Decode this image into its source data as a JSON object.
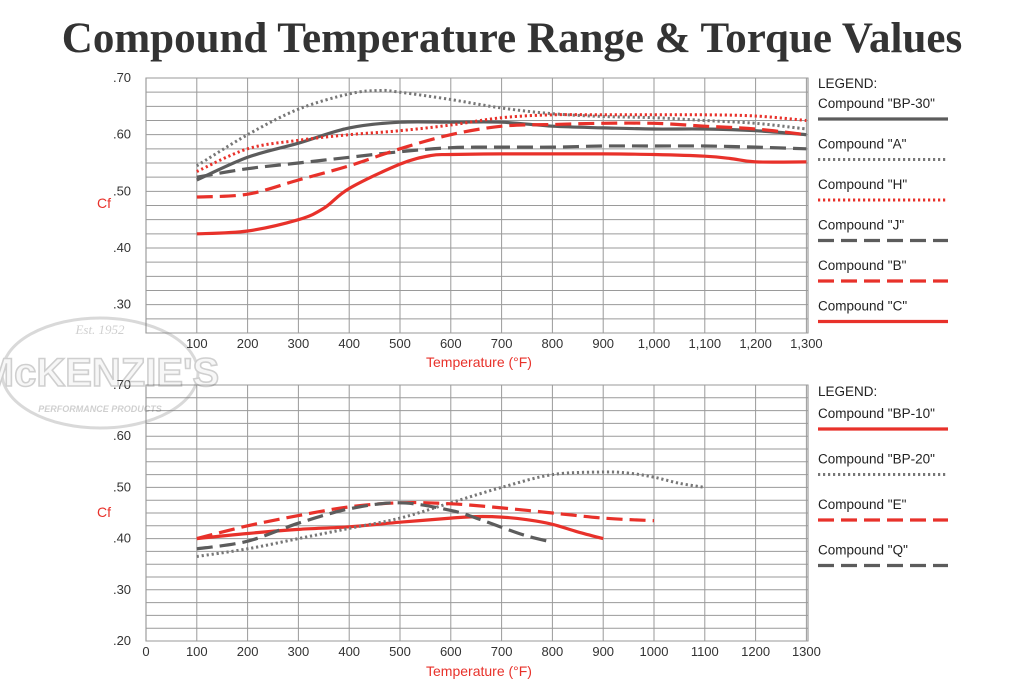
{
  "page": {
    "title": "Compound Temperature Range & Torque Values"
  },
  "watermark": {
    "text": "McKENZIE'S",
    "top_text": "Est. 1952",
    "bottom_text": "PERFORMANCE PRODUCTS"
  },
  "colors": {
    "red": "#e8312a",
    "dark_gray": "#5c5c5c",
    "dotted_gray": "#777777",
    "grid": "#9a9a9a"
  },
  "chart_data": [
    {
      "type": "line",
      "title": "",
      "xlabel": "Temperature (°F)",
      "ylabel": "Cf",
      "xlim": [
        100,
        1300
      ],
      "ylim": [
        0.25,
        0.7
      ],
      "xticks": [
        "100",
        "200",
        "300",
        "400",
        "500",
        "600",
        "700",
        "800",
        "900",
        "1,000",
        "1,100",
        "1,200",
        "1,300"
      ],
      "yticks": [
        ".30",
        ".40",
        ".50",
        ".60",
        ".70"
      ],
      "grid": true,
      "legend_title": "LEGEND:",
      "legend_position": "right",
      "series": [
        {
          "name": "Compound \"BP-30\"",
          "color": "#5c5c5c",
          "style": "solid",
          "x": [
            100,
            200,
            300,
            400,
            500,
            600,
            700,
            800,
            900,
            1000,
            1100,
            1200,
            1300
          ],
          "y": [
            0.52,
            0.56,
            0.585,
            0.612,
            0.622,
            0.622,
            0.622,
            0.615,
            0.612,
            0.61,
            0.61,
            0.607,
            0.6
          ]
        },
        {
          "name": "Compound \"A\"",
          "color": "#777777",
          "style": "dotted",
          "x": [
            100,
            200,
            300,
            400,
            460,
            500,
            600,
            700,
            800,
            900,
            1000,
            1100,
            1200,
            1300
          ],
          "y": [
            0.545,
            0.6,
            0.645,
            0.672,
            0.678,
            0.675,
            0.662,
            0.647,
            0.637,
            0.632,
            0.63,
            0.625,
            0.62,
            0.61
          ]
        },
        {
          "name": "Compound \"H\"",
          "color": "#e8312a",
          "style": "dotted",
          "x": [
            100,
            200,
            300,
            400,
            500,
            600,
            700,
            800,
            900,
            1000,
            1100,
            1200,
            1300
          ],
          "y": [
            0.535,
            0.575,
            0.59,
            0.6,
            0.607,
            0.617,
            0.63,
            0.635,
            0.635,
            0.635,
            0.635,
            0.633,
            0.625
          ]
        },
        {
          "name": "Compound \"J\"",
          "color": "#5c5c5c",
          "style": "dashed",
          "x": [
            100,
            200,
            300,
            400,
            500,
            600,
            700,
            800,
            900,
            1000,
            1100,
            1200,
            1300
          ],
          "y": [
            0.525,
            0.54,
            0.55,
            0.56,
            0.57,
            0.577,
            0.578,
            0.578,
            0.58,
            0.58,
            0.58,
            0.578,
            0.575
          ]
        },
        {
          "name": "Compound \"B\"",
          "color": "#e8312a",
          "style": "dashed",
          "x": [
            100,
            200,
            300,
            400,
            500,
            600,
            700,
            800,
            900,
            1000,
            1100,
            1200,
            1300
          ],
          "y": [
            0.49,
            0.495,
            0.52,
            0.545,
            0.575,
            0.6,
            0.615,
            0.618,
            0.62,
            0.62,
            0.615,
            0.61,
            0.6
          ]
        },
        {
          "name": "Compound \"C\"",
          "color": "#e8312a",
          "style": "solid",
          "x": [
            100,
            200,
            300,
            350,
            400,
            500,
            560,
            600,
            700,
            800,
            900,
            1000,
            1100,
            1150,
            1200,
            1300
          ],
          "y": [
            0.425,
            0.43,
            0.45,
            0.47,
            0.505,
            0.548,
            0.563,
            0.565,
            0.566,
            0.566,
            0.566,
            0.565,
            0.562,
            0.558,
            0.552,
            0.552
          ]
        }
      ]
    },
    {
      "type": "line",
      "title": "",
      "xlabel": "Temperature (°F)",
      "ylabel": "Cf",
      "xlim": [
        0,
        1300
      ],
      "ylim": [
        0.2,
        0.7
      ],
      "xticks": [
        "0",
        "100",
        "200",
        "300",
        "400",
        "500",
        "600",
        "700",
        "800",
        "900",
        "1000",
        "1100",
        "1200",
        "1300"
      ],
      "yticks": [
        ".20",
        ".30",
        ".40",
        ".50",
        ".60",
        ".70"
      ],
      "grid": true,
      "legend_title": "LEGEND:",
      "legend_position": "right",
      "series": [
        {
          "name": "Compound \"BP-10\"",
          "color": "#e8312a",
          "style": "solid",
          "x": [
            100,
            200,
            300,
            400,
            500,
            600,
            650,
            700,
            750,
            800,
            850,
            900
          ],
          "y": [
            0.4,
            0.41,
            0.418,
            0.423,
            0.432,
            0.44,
            0.443,
            0.442,
            0.437,
            0.428,
            0.413,
            0.4
          ]
        },
        {
          "name": "Compound \"BP-20\"",
          "color": "#777777",
          "style": "dotted",
          "x": [
            100,
            200,
            300,
            400,
            500,
            600,
            700,
            800,
            900,
            950,
            1000,
            1050,
            1100
          ],
          "y": [
            0.365,
            0.38,
            0.4,
            0.42,
            0.44,
            0.47,
            0.5,
            0.525,
            0.53,
            0.528,
            0.52,
            0.508,
            0.5
          ]
        },
        {
          "name": "Compound \"E\"",
          "color": "#e8312a",
          "style": "dashed",
          "x": [
            100,
            200,
            300,
            400,
            500,
            600,
            700,
            800,
            900,
            1000
          ],
          "y": [
            0.4,
            0.425,
            0.445,
            0.462,
            0.47,
            0.468,
            0.46,
            0.45,
            0.44,
            0.435
          ]
        },
        {
          "name": "Compound \"Q\"",
          "color": "#5c5c5c",
          "style": "dashed",
          "x": [
            100,
            200,
            300,
            400,
            500,
            600,
            650,
            700,
            750,
            800
          ],
          "y": [
            0.38,
            0.395,
            0.43,
            0.458,
            0.47,
            0.455,
            0.44,
            0.422,
            0.405,
            0.393
          ]
        }
      ]
    }
  ]
}
